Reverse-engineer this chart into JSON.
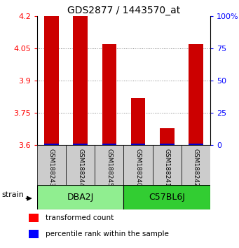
{
  "title": "GDS2877 / 1443570_at",
  "samples": [
    "GSM188243",
    "GSM188244",
    "GSM188245",
    "GSM188240",
    "GSM188241",
    "GSM188242"
  ],
  "group_info": [
    {
      "name": "DBA2J",
      "start": 0,
      "end": 2,
      "color": "#90EE90"
    },
    {
      "name": "C57BL6J",
      "start": 3,
      "end": 5,
      "color": "#32CD32"
    }
  ],
  "transformed_counts": [
    4.2,
    4.2,
    4.07,
    3.82,
    3.68,
    4.07
  ],
  "y_min": 3.6,
  "y_max": 4.2,
  "y_ticks": [
    3.6,
    3.75,
    3.9,
    4.05,
    4.2
  ],
  "y_tick_labels": [
    "3.6",
    "3.75",
    "3.9",
    "4.05",
    "4.2"
  ],
  "y2_ticks_pct": [
    0,
    25,
    50,
    75,
    100
  ],
  "y2_tick_labels": [
    "0",
    "25",
    "50",
    "75",
    "100%"
  ],
  "bar_color": "#cc0000",
  "percentile_color": "#0000cc",
  "bar_width": 0.5,
  "legend_red_label": "transformed count",
  "legend_blue_label": "percentile rank within the sample",
  "strain_label": "strain",
  "grid_color": "#888888",
  "sample_box_color": "#cccccc",
  "title_fontsize": 10,
  "tick_fontsize": 8,
  "sample_fontsize": 6.5,
  "group_fontsize": 9,
  "legend_fontsize": 7.5,
  "strain_fontsize": 8
}
